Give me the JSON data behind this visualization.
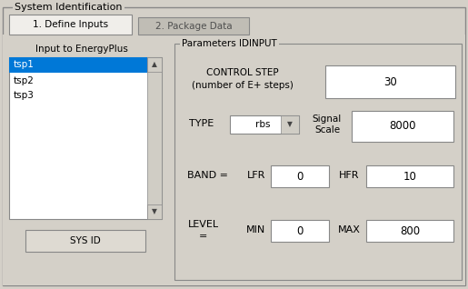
{
  "title": "System Identification",
  "tab1": "1. Define Inputs",
  "tab2": "2. Package Data",
  "left_label": "Input to EnergyPlus",
  "list_items": [
    "tsp1",
    "tsp2",
    "tsp3"
  ],
  "button_label": "SYS ID",
  "params_label": "Parameters IDINPUT",
  "control_step_label1": "CONTROL STEP",
  "control_step_label2": "(number of E+ steps)",
  "control_step_value": "30",
  "type_label": "TYPE",
  "type_value": "rbs",
  "signal_scale_label1": "Signal",
  "signal_scale_label2": "Scale",
  "signal_scale_value": "8000",
  "band_label": "BAND =",
  "lfr_label": "LFR",
  "lfr_value": "0",
  "hfr_label": "HFR",
  "hfr_value": "10",
  "level_label1": "LEVEL",
  "level_label2": "=",
  "min_label": "MIN",
  "min_value": "0",
  "max_label": "MAX",
  "max_value": "800",
  "bg_color": "#d4d0c8",
  "tab_active_color": "#f0eeea",
  "tab_inactive_color": "#c0bdb5",
  "list_bg": "#ffffff",
  "list_selected_bg": "#0078d7",
  "list_selected_fg": "#ffffff",
  "list_fg": "#000000",
  "input_bg": "#ffffff",
  "border_color": "#888888",
  "text_color": "#000000",
  "group_border_color": "#888888",
  "scrollbar_color": "#d0cdc5",
  "button_color": "#dedad2",
  "font_size": 7.5
}
